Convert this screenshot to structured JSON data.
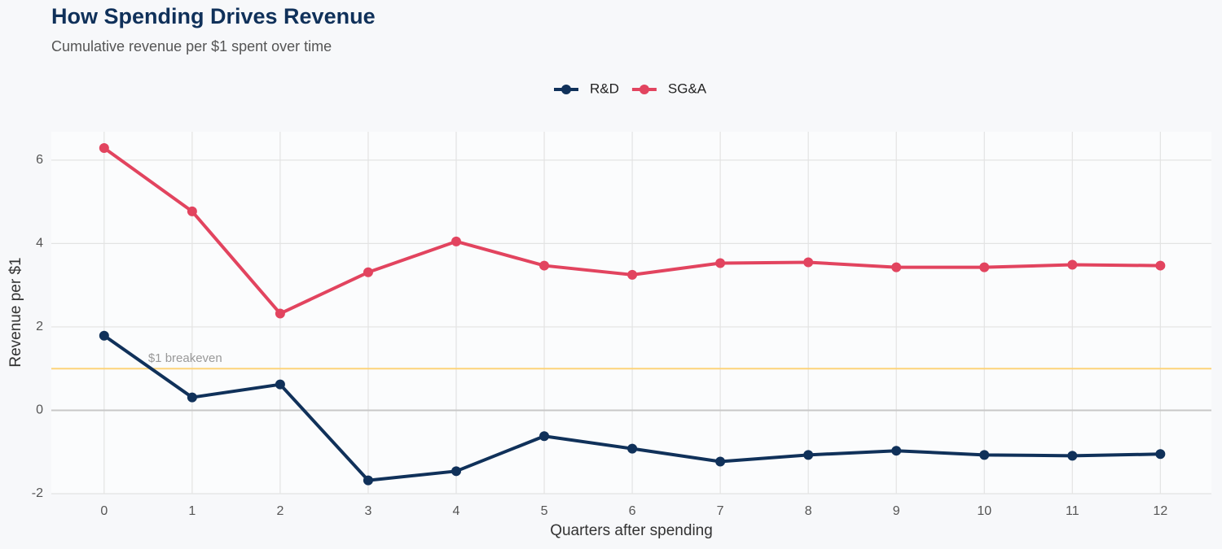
{
  "chart_data": {
    "type": "line",
    "title": "How Spending Drives Revenue",
    "subtitle": "Cumulative revenue per $1 spent over time",
    "x_label": "Quarters after spending",
    "y_label": "Revenue per $1",
    "x": [
      0,
      1,
      2,
      3,
      4,
      5,
      6,
      7,
      8,
      9,
      10,
      11,
      12
    ],
    "series": [
      {
        "name": "R&D",
        "color": "#10315a",
        "values": [
          1.79,
          0.31,
          0.62,
          -1.68,
          -1.46,
          -0.62,
          -0.92,
          -1.23,
          -1.07,
          -0.97,
          -1.07,
          -1.09,
          -1.05
        ]
      },
      {
        "name": "SG&A",
        "color": "#e2445f",
        "values": [
          6.29,
          4.77,
          2.32,
          3.31,
          4.05,
          3.47,
          3.25,
          3.53,
          3.55,
          3.43,
          3.43,
          3.49,
          3.47
        ]
      }
    ],
    "xlim": [
      -0.6,
      12.58
    ],
    "ylim": [
      -2,
      6.68
    ],
    "xticks": [
      0,
      1,
      2,
      3,
      4,
      5,
      6,
      7,
      8,
      9,
      10,
      11,
      12
    ],
    "yticks": [
      -2,
      0,
      2,
      4,
      6
    ],
    "grid": true,
    "legend": "top",
    "reference_line": {
      "value": 1,
      "label": "$1 breakeven",
      "label_x": 0.5,
      "color": "#fdd37a"
    }
  }
}
